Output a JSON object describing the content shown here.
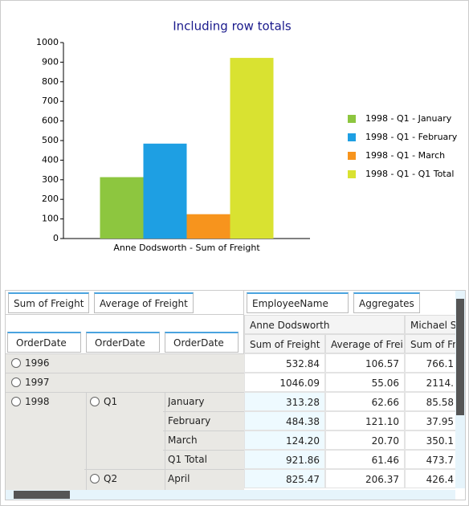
{
  "chart_data": {
    "type": "bar",
    "title": "Including row totals",
    "categories": [
      "Anne Dodsworth - Sum of Freight"
    ],
    "series": [
      {
        "name": "1998 - Q1 - January",
        "color": "#8dc63f",
        "values": [
          313.28
        ]
      },
      {
        "name": "1998 - Q1 - February",
        "color": "#1e9fe3",
        "values": [
          484.38
        ]
      },
      {
        "name": "1998 - Q1 - March",
        "color": "#f7941d",
        "values": [
          124.2
        ]
      },
      {
        "name": "1998 - Q1 - Q1 Total",
        "color": "#d9e231",
        "values": [
          921.86
        ]
      }
    ],
    "ylim": [
      0,
      1000
    ],
    "yticks": [
      0,
      100,
      200,
      300,
      400,
      500,
      600,
      700,
      800,
      900,
      1000
    ],
    "legend": "right"
  },
  "grid": {
    "filter_fields": [
      "Sum of Freight",
      "Average of Freight"
    ],
    "column_fields": [
      "EmployeeName",
      "Aggregates"
    ],
    "row_fields": [
      "OrderDate",
      "OrderDate",
      "OrderDate"
    ],
    "column_headers": [
      "Anne Dodsworth",
      "Michael Su"
    ],
    "aggregate_headers": [
      "Sum of Freight",
      "Average of Frei",
      "Sum of Fre"
    ],
    "rows": [
      {
        "year": "1996",
        "cells": [
          "532.84",
          "106.57",
          "766.1"
        ]
      },
      {
        "year": "1997",
        "cells": [
          "1046.09",
          "55.06",
          "2114."
        ]
      },
      {
        "year": "1998",
        "quarter": "Q1",
        "month": "January",
        "cells": [
          "313.28",
          "62.66",
          "85.58"
        ]
      },
      {
        "month": "February",
        "cells": [
          "484.38",
          "121.10",
          "37.95"
        ]
      },
      {
        "month": "March",
        "cells": [
          "124.20",
          "20.70",
          "350.1"
        ]
      },
      {
        "month": "Q1 Total",
        "cells": [
          "921.86",
          "61.46",
          "473.7"
        ]
      },
      {
        "quarter": "Q2",
        "month": "April",
        "cells": [
          "825.47",
          "206.37",
          "426.4"
        ]
      }
    ]
  }
}
